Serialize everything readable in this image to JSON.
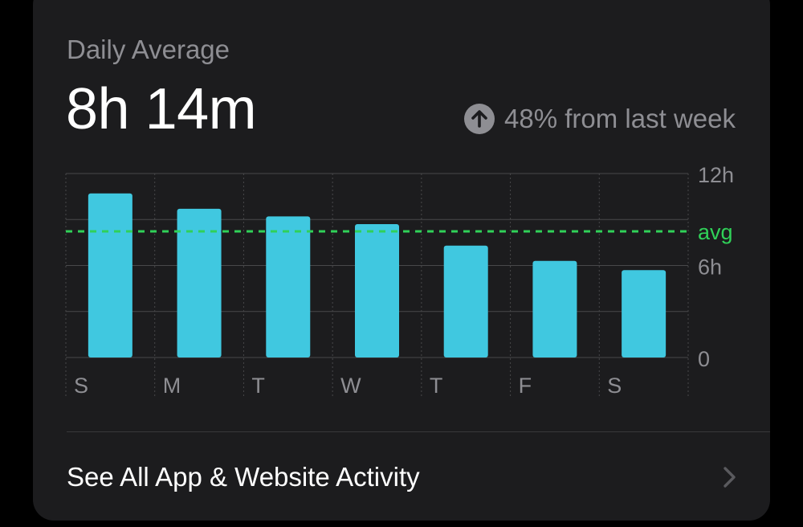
{
  "header": {
    "label": "Daily Average",
    "value": "8h 14m",
    "change_text": "48% from last week",
    "change_icon": "arrow-up-circle-icon"
  },
  "colors": {
    "bar": "#40c8e0",
    "avg_line": "#30d158",
    "grid": "#48484a",
    "axis_text": "#8e8e93"
  },
  "chart_data": {
    "type": "bar",
    "categories": [
      "S",
      "M",
      "T",
      "W",
      "T",
      "F",
      "S"
    ],
    "values": [
      10.7,
      9.7,
      9.2,
      8.7,
      7.3,
      6.3,
      5.7
    ],
    "ylim": [
      0,
      12
    ],
    "y_tick_labels": [
      {
        "value": 12,
        "label": "12h"
      },
      {
        "value": 6,
        "label": "6h"
      },
      {
        "value": 0,
        "label": "0"
      }
    ],
    "avg": {
      "value": 8.23,
      "label": "avg"
    },
    "grid": true
  },
  "footer": {
    "link_label": "See All App & Website Activity",
    "chevron_icon": "chevron-right-icon"
  }
}
